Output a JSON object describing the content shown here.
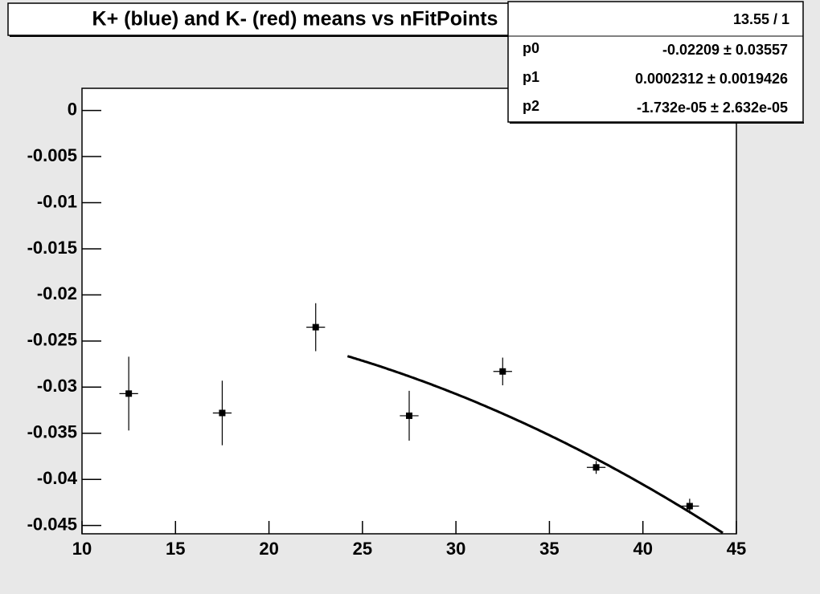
{
  "chart_data": {
    "type": "errorbar",
    "title": "K+ (blue) and K- (red) means vs nFitPoints",
    "x": [
      12.5,
      17.5,
      22.5,
      27.5,
      32.5,
      37.5,
      42.5
    ],
    "values": [
      -0.0307,
      -0.0328,
      -0.0235,
      -0.0331,
      -0.0283,
      -0.0387,
      -0.0429
    ],
    "errors": [
      0.004,
      0.0035,
      0.0026,
      0.0027,
      0.0015,
      0.0007,
      0.0008
    ],
    "xerrors": [
      0.5,
      0.5,
      0.5,
      0.5,
      0.5,
      0.5,
      0.5
    ],
    "color": "#000000",
    "xlim": [
      10,
      45
    ],
    "ylim": [
      -0.0459,
      0.0024
    ],
    "xticks": [
      10,
      15,
      20,
      25,
      30,
      35,
      40,
      45
    ],
    "yticks": [
      0,
      -0.005,
      -0.01,
      -0.015,
      -0.02,
      -0.025,
      -0.03,
      -0.035,
      -0.04,
      -0.045
    ],
    "fit": {
      "params": [
        -0.02209,
        0.0002312,
        -1.732e-05
      ],
      "xrange": [
        24.2,
        45
      ]
    },
    "stats": {
      "header": "13.55 / 1",
      "rows": [
        {
          "name": "p0",
          "value": "-0.02209 ± 0.03557"
        },
        {
          "name": "p1",
          "value": "0.0002312 ± 0.0019426"
        },
        {
          "name": "p2",
          "value": "-1.732e-05 ± 2.632e-05"
        }
      ]
    }
  }
}
